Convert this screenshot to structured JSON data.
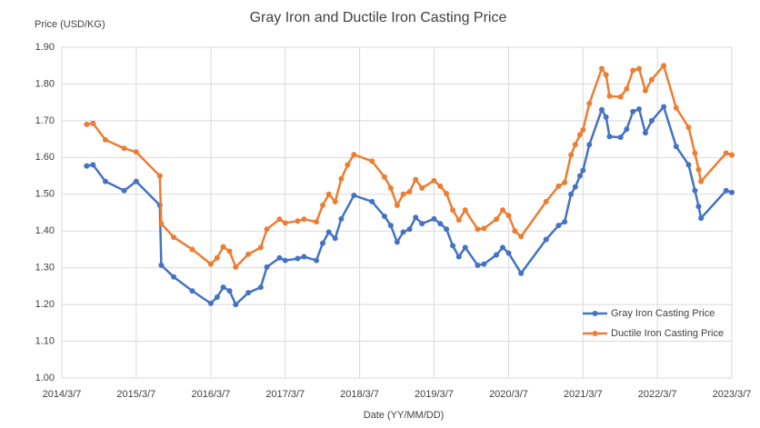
{
  "chart_data": {
    "type": "line",
    "title": "Gray Iron and Ductile Iron Casting Price",
    "y_label": "Price (USD/KG)",
    "x_label": "Date (YY/MM/DD)",
    "xlim": [
      "2014/3/7",
      "2023/3/7"
    ],
    "xticks": [
      "2014/3/7",
      "2015/3/7",
      "2016/3/7",
      "2017/3/7",
      "2018/3/7",
      "2019/3/7",
      "2020/3/7",
      "2021/3/7",
      "2022/3/7",
      "2023/3/7"
    ],
    "ylim": [
      1.0,
      1.9
    ],
    "yticks": [
      {
        "value": 1.0,
        "label": "1.00"
      },
      {
        "value": 1.1,
        "label": "1.10"
      },
      {
        "value": 1.2,
        "label": "1.20"
      },
      {
        "value": 1.3,
        "label": "1.30"
      },
      {
        "value": 1.4,
        "label": "1.40"
      },
      {
        "value": 1.5,
        "label": "1.50"
      },
      {
        "value": 1.6,
        "label": "1.60"
      },
      {
        "value": 1.7,
        "label": "1.70"
      },
      {
        "value": 1.8,
        "label": "1.80"
      },
      {
        "value": 1.9,
        "label": "1.90"
      }
    ],
    "grid": true,
    "legend": "lower right",
    "series": [
      {
        "name": "Gray Iron Casting Price",
        "color": "#4472c4",
        "x": [
          "2014/7/7",
          "2014/8/7",
          "2014/10/7",
          "2015/1/7",
          "2015/3/7",
          "2015/7/1",
          "2015/7/8",
          "2015/9/7",
          "2015/12/7",
          "2016/3/7",
          "2016/4/7",
          "2016/5/7",
          "2016/6/7",
          "2016/7/7",
          "2016/9/7",
          "2016/11/7",
          "2016/12/7",
          "2017/2/7",
          "2017/3/7",
          "2017/5/7",
          "2017/6/7",
          "2017/8/7",
          "2017/9/7",
          "2017/10/7",
          "2017/11/7",
          "2017/12/7",
          "2018/2/7",
          "2018/5/7",
          "2018/7/7",
          "2018/8/7",
          "2018/9/7",
          "2018/10/7",
          "2018/11/7",
          "2018/12/7",
          "2019/1/7",
          "2019/3/7",
          "2019/4/7",
          "2019/5/7",
          "2019/6/7",
          "2019/7/7",
          "2019/8/7",
          "2019/10/7",
          "2019/11/7",
          "2020/1/7",
          "2020/2/7",
          "2020/3/7",
          "2020/5/7",
          "2020/9/7",
          "2020/11/7",
          "2020/12/7",
          "2021/1/7",
          "2021/1/28",
          "2021/2/20",
          "2021/3/7",
          "2021/4/7",
          "2021/6/7",
          "2021/6/28",
          "2021/7/15",
          "2021/9/7",
          "2021/10/7",
          "2021/11/7",
          "2021/12/7",
          "2022/1/7",
          "2022/2/7",
          "2022/4/7",
          "2022/6/7",
          "2022/8/7",
          "2022/9/7",
          "2022/9/25",
          "2022/10/7",
          "2023/2/7",
          "2023/3/7"
        ],
        "values": [
          1.577,
          1.58,
          1.535,
          1.51,
          1.535,
          1.47,
          1.307,
          1.275,
          1.237,
          1.203,
          1.22,
          1.247,
          1.237,
          1.2,
          1.232,
          1.247,
          1.302,
          1.327,
          1.32,
          1.325,
          1.33,
          1.32,
          1.367,
          1.397,
          1.38,
          1.433,
          1.497,
          1.48,
          1.44,
          1.415,
          1.37,
          1.397,
          1.405,
          1.437,
          1.42,
          1.433,
          1.42,
          1.405,
          1.36,
          1.33,
          1.355,
          1.307,
          1.31,
          1.335,
          1.355,
          1.34,
          1.285,
          1.377,
          1.415,
          1.425,
          1.5,
          1.52,
          1.55,
          1.565,
          1.635,
          1.73,
          1.71,
          1.657,
          1.655,
          1.677,
          1.725,
          1.732,
          1.667,
          1.7,
          1.738,
          1.63,
          1.58,
          1.51,
          1.467,
          1.435,
          1.51,
          1.505
        ]
      },
      {
        "name": "Ductile Iron Casting Price",
        "color": "#ed7d31",
        "x": [
          "2014/7/7",
          "2014/8/7",
          "2014/10/7",
          "2015/1/7",
          "2015/3/7",
          "2015/7/1",
          "2015/7/8",
          "2015/9/7",
          "2015/12/7",
          "2016/3/7",
          "2016/4/7",
          "2016/5/7",
          "2016/6/7",
          "2016/7/7",
          "2016/9/7",
          "2016/11/7",
          "2016/12/7",
          "2017/2/7",
          "2017/3/7",
          "2017/5/7",
          "2017/6/7",
          "2017/8/7",
          "2017/9/7",
          "2017/10/7",
          "2017/11/7",
          "2017/12/7",
          "2018/1/7",
          "2018/2/7",
          "2018/5/7",
          "2018/7/7",
          "2018/8/7",
          "2018/9/7",
          "2018/10/7",
          "2018/11/7",
          "2018/12/7",
          "2019/1/7",
          "2019/3/7",
          "2019/4/7",
          "2019/5/7",
          "2019/6/7",
          "2019/7/7",
          "2019/8/7",
          "2019/10/7",
          "2019/11/7",
          "2020/1/7",
          "2020/2/7",
          "2020/3/7",
          "2020/4/7",
          "2020/5/7",
          "2020/9/7",
          "2020/11/7",
          "2020/12/7",
          "2021/1/7",
          "2021/1/28",
          "2021/2/20",
          "2021/3/7",
          "2021/4/7",
          "2021/6/7",
          "2021/6/28",
          "2021/7/15",
          "2021/9/7",
          "2021/10/7",
          "2021/11/7",
          "2021/12/7",
          "2022/1/7",
          "2022/2/7",
          "2022/4/7",
          "2022/6/7",
          "2022/8/7",
          "2022/9/7",
          "2022/9/25",
          "2022/10/7",
          "2023/2/7",
          "2023/3/7"
        ],
        "values": [
          1.69,
          1.693,
          1.648,
          1.625,
          1.615,
          1.55,
          1.42,
          1.383,
          1.35,
          1.31,
          1.327,
          1.357,
          1.345,
          1.302,
          1.337,
          1.355,
          1.405,
          1.432,
          1.422,
          1.427,
          1.432,
          1.425,
          1.47,
          1.5,
          1.48,
          1.542,
          1.58,
          1.608,
          1.59,
          1.547,
          1.517,
          1.47,
          1.5,
          1.507,
          1.54,
          1.517,
          1.537,
          1.522,
          1.502,
          1.457,
          1.43,
          1.457,
          1.405,
          1.407,
          1.432,
          1.457,
          1.442,
          1.4,
          1.385,
          1.48,
          1.522,
          1.532,
          1.607,
          1.635,
          1.662,
          1.675,
          1.747,
          1.842,
          1.825,
          1.767,
          1.765,
          1.787,
          1.837,
          1.842,
          1.782,
          1.812,
          1.85,
          1.735,
          1.682,
          1.612,
          1.567,
          1.535,
          1.612,
          1.607
        ]
      }
    ]
  }
}
